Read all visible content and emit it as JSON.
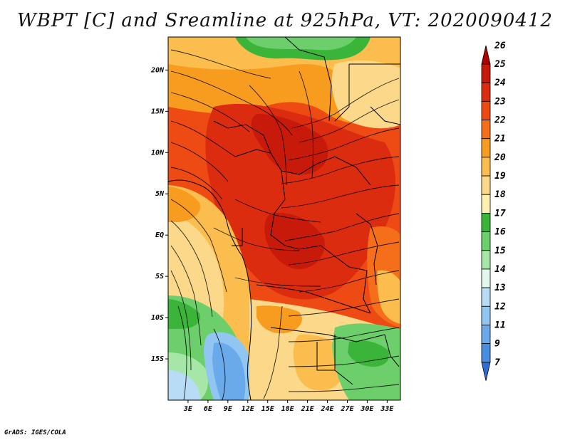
{
  "title": "WBPT [C] and Sreamline at 925hPa, VT: 2020090412",
  "credit": "GrADS: IGES/COLA",
  "map": {
    "type": "heatmap",
    "variable": "WBPT [C]",
    "overlay": "Sreamline",
    "level": "925hPa",
    "valid_time": "2020090412",
    "lon_range": [
      0,
      35
    ],
    "lat_range": [
      -20,
      24
    ],
    "lon_ticks": [
      {
        "value": 3,
        "label": "3E"
      },
      {
        "value": 6,
        "label": "6E"
      },
      {
        "value": 9,
        "label": "9E"
      },
      {
        "value": 12,
        "label": "12E"
      },
      {
        "value": 15,
        "label": "15E"
      },
      {
        "value": 18,
        "label": "18E"
      },
      {
        "value": 21,
        "label": "21E"
      },
      {
        "value": 24,
        "label": "24E"
      },
      {
        "value": 27,
        "label": "27E"
      },
      {
        "value": 30,
        "label": "30E"
      },
      {
        "value": 33,
        "label": "33E"
      }
    ],
    "lat_ticks": [
      {
        "value": 20,
        "label": "20N"
      },
      {
        "value": 15,
        "label": "15N"
      },
      {
        "value": 10,
        "label": "10N"
      },
      {
        "value": 5,
        "label": "5N"
      },
      {
        "value": 0,
        "label": "EQ"
      },
      {
        "value": -5,
        "label": "5S"
      },
      {
        "value": -10,
        "label": "10S"
      },
      {
        "value": -15,
        "label": "15S"
      }
    ]
  },
  "colorbar": {
    "levels": [
      {
        "label": "26",
        "color": "#b00000"
      },
      {
        "label": "25",
        "color": "#c81a0a"
      },
      {
        "label": "24",
        "color": "#dc2c10"
      },
      {
        "label": "23",
        "color": "#ee4a14"
      },
      {
        "label": "22",
        "color": "#f56f1a"
      },
      {
        "label": "21",
        "color": "#f89c20"
      },
      {
        "label": "20",
        "color": "#fbbe4e"
      },
      {
        "label": "19",
        "color": "#fcd98a"
      },
      {
        "label": "18",
        "color": "#fdf0b0"
      },
      {
        "label": "17",
        "color": "#3ab53a"
      },
      {
        "label": "16",
        "color": "#6ccf6c"
      },
      {
        "label": "15",
        "color": "#a6e6a6"
      },
      {
        "label": "14",
        "color": "#e2f8ee"
      },
      {
        "label": "13",
        "color": "#b8dcf6"
      },
      {
        "label": "12",
        "color": "#92c6f2"
      },
      {
        "label": "11",
        "color": "#6aaaea"
      },
      {
        "label": "9",
        "color": "#4a8ee2"
      },
      {
        "label": "7",
        "color": "#2e6ed4"
      }
    ]
  }
}
